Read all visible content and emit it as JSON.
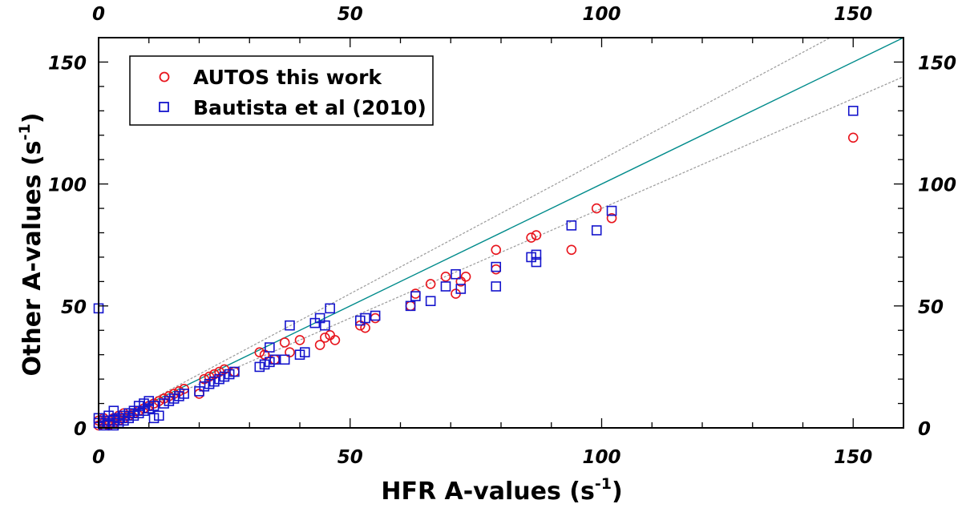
{
  "chart_data": {
    "type": "scatter",
    "xlabel": "HFR A-values (s",
    "xlabel_sup": "-1",
    "xlabel_end": ")",
    "ylabel": "Other A-values (s",
    "ylabel_sup": "-1",
    "ylabel_end": ")",
    "xlim": [
      0,
      160
    ],
    "ylim": [
      0,
      160
    ],
    "x_ticks": [
      0,
      50,
      100,
      150
    ],
    "y_ticks": [
      0,
      50,
      100,
      150
    ],
    "x_tick_labels": [
      "0",
      "50",
      "100",
      "150"
    ],
    "y_tick_labels": [
      "0",
      "50",
      "100",
      "150"
    ],
    "legend_position": "top-left",
    "colors": {
      "autos": "#e8141c",
      "bautista": "#1414cc",
      "identity": "#008b8b",
      "bounds": "#9a9a9a"
    },
    "reference_lines": [
      {
        "kind": "identity",
        "slope": 1.0
      },
      {
        "kind": "upper",
        "slope": 1.1
      },
      {
        "kind": "lower",
        "slope": 0.9
      }
    ],
    "series": [
      {
        "name": "AUTOS this work",
        "marker": "circle",
        "points": [
          [
            0,
            1
          ],
          [
            0,
            3
          ],
          [
            1,
            2
          ],
          [
            1,
            4
          ],
          [
            2,
            1
          ],
          [
            2,
            3
          ],
          [
            3,
            2
          ],
          [
            3,
            4
          ],
          [
            4,
            3
          ],
          [
            4,
            5
          ],
          [
            5,
            4
          ],
          [
            5,
            6
          ],
          [
            6,
            5
          ],
          [
            7,
            6
          ],
          [
            8,
            7
          ],
          [
            9,
            8
          ],
          [
            10,
            9
          ],
          [
            11,
            10
          ],
          [
            12,
            11
          ],
          [
            13,
            12
          ],
          [
            14,
            13
          ],
          [
            15,
            14
          ],
          [
            16,
            15
          ],
          [
            17,
            16
          ],
          [
            20,
            14
          ],
          [
            21,
            20
          ],
          [
            22,
            21
          ],
          [
            23,
            22
          ],
          [
            24,
            23
          ],
          [
            25,
            24
          ],
          [
            27,
            23
          ],
          [
            32,
            31
          ],
          [
            33,
            30
          ],
          [
            35,
            28
          ],
          [
            37,
            35
          ],
          [
            38,
            31
          ],
          [
            40,
            36
          ],
          [
            44,
            34
          ],
          [
            45,
            37
          ],
          [
            46,
            38
          ],
          [
            47,
            36
          ],
          [
            52,
            42
          ],
          [
            53,
            41
          ],
          [
            55,
            45
          ],
          [
            62,
            50
          ],
          [
            63,
            55
          ],
          [
            66,
            59
          ],
          [
            69,
            62
          ],
          [
            71,
            55
          ],
          [
            72,
            60
          ],
          [
            73,
            62
          ],
          [
            79,
            73
          ],
          [
            79,
            65
          ],
          [
            86,
            78
          ],
          [
            87,
            79
          ],
          [
            94,
            73
          ],
          [
            99,
            90
          ],
          [
            102,
            86
          ],
          [
            150,
            119
          ]
        ]
      },
      {
        "name": "Bautista et al (2010)",
        "marker": "square",
        "points": [
          [
            0,
            49
          ],
          [
            0,
            2
          ],
          [
            0,
            4
          ],
          [
            1,
            1
          ],
          [
            1,
            3
          ],
          [
            2,
            2
          ],
          [
            2,
            5
          ],
          [
            3,
            1
          ],
          [
            3,
            3
          ],
          [
            3,
            7
          ],
          [
            4,
            2
          ],
          [
            4,
            4
          ],
          [
            5,
            3
          ],
          [
            5,
            5
          ],
          [
            6,
            4
          ],
          [
            6,
            6
          ],
          [
            7,
            5
          ],
          [
            7,
            7
          ],
          [
            8,
            6
          ],
          [
            8,
            9
          ],
          [
            9,
            7
          ],
          [
            9,
            10
          ],
          [
            10,
            8
          ],
          [
            10,
            11
          ],
          [
            11,
            9
          ],
          [
            11,
            4
          ],
          [
            12,
            5
          ],
          [
            13,
            10
          ],
          [
            14,
            11
          ],
          [
            15,
            12
          ],
          [
            16,
            13
          ],
          [
            17,
            14
          ],
          [
            20,
            15
          ],
          [
            21,
            17
          ],
          [
            22,
            18
          ],
          [
            23,
            19
          ],
          [
            24,
            20
          ],
          [
            25,
            21
          ],
          [
            26,
            22
          ],
          [
            27,
            23
          ],
          [
            32,
            25
          ],
          [
            33,
            26
          ],
          [
            34,
            27
          ],
          [
            35,
            28
          ],
          [
            34,
            33
          ],
          [
            37,
            28
          ],
          [
            38,
            42
          ],
          [
            40,
            30
          ],
          [
            41,
            31
          ],
          [
            43,
            43
          ],
          [
            44,
            45
          ],
          [
            45,
            42
          ],
          [
            46,
            49
          ],
          [
            52,
            44
          ],
          [
            53,
            45
          ],
          [
            55,
            46
          ],
          [
            62,
            50
          ],
          [
            63,
            54
          ],
          [
            66,
            52
          ],
          [
            69,
            58
          ],
          [
            71,
            63
          ],
          [
            72,
            57
          ],
          [
            79,
            58
          ],
          [
            79,
            66
          ],
          [
            86,
            70
          ],
          [
            87,
            68
          ],
          [
            87,
            71
          ],
          [
            94,
            83
          ],
          [
            99,
            81
          ],
          [
            102,
            89
          ],
          [
            150,
            130
          ]
        ]
      }
    ]
  }
}
